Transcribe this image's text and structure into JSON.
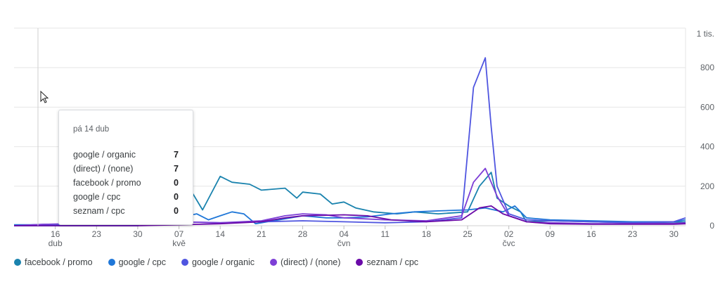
{
  "colors": {
    "facebook_promo": "#1a83ae",
    "google_cpc": "#1f77d8",
    "google_organic": "#4f55e0",
    "direct_none": "#7d3fd6",
    "seznam_cpc": "#6a0aa8",
    "grid": "#e6e6e6"
  },
  "tooltip": {
    "date": "pá 14 dub",
    "rows": [
      {
        "label": "google / organic",
        "value": "7"
      },
      {
        "label": "(direct) / (none)",
        "value": "7"
      },
      {
        "label": "facebook / promo",
        "value": "0"
      },
      {
        "label": "google / cpc",
        "value": "0"
      },
      {
        "label": "seznam / cpc",
        "value": "0"
      }
    ]
  },
  "cursor_icon": "mouse-pointer-icon",
  "chart_data": {
    "type": "line",
    "title": "",
    "xlabel": "",
    "ylabel": "",
    "ylim": [
      0,
      1000
    ],
    "y_ticks": [
      {
        "value": 0,
        "label": "0"
      },
      {
        "value": 200,
        "label": "200"
      },
      {
        "value": 400,
        "label": "400"
      },
      {
        "value": 600,
        "label": "600"
      },
      {
        "value": 800,
        "label": "800"
      },
      {
        "value": 1000,
        "label": "1 tis."
      }
    ],
    "x_start": "2023-04-09",
    "x_ticks": [
      {
        "date": "2023-04-16",
        "label": "16",
        "sub": "dub"
      },
      {
        "date": "2023-04-23",
        "label": "23",
        "sub": ""
      },
      {
        "date": "2023-04-30",
        "label": "30",
        "sub": ""
      },
      {
        "date": "2023-05-07",
        "label": "07",
        "sub": "kvě"
      },
      {
        "date": "2023-05-14",
        "label": "14",
        "sub": ""
      },
      {
        "date": "2023-05-21",
        "label": "21",
        "sub": ""
      },
      {
        "date": "2023-05-28",
        "label": "28",
        "sub": ""
      },
      {
        "date": "2023-06-04",
        "label": "04",
        "sub": "čvn"
      },
      {
        "date": "2023-06-11",
        "label": "11",
        "sub": ""
      },
      {
        "date": "2023-06-18",
        "label": "18",
        "sub": ""
      },
      {
        "date": "2023-06-25",
        "label": "25",
        "sub": ""
      },
      {
        "date": "2023-07-02",
        "label": "02",
        "sub": "čvc"
      },
      {
        "date": "2023-07-09",
        "label": "09",
        "sub": ""
      },
      {
        "date": "2023-07-16",
        "label": "16",
        "sub": ""
      },
      {
        "date": "2023-07-23",
        "label": "23",
        "sub": ""
      },
      {
        "date": "2023-07-30",
        "label": "30",
        "sub": ""
      }
    ],
    "series": [
      {
        "name": "facebook / promo",
        "color": "#1a83ae",
        "points": [
          [
            "2023-04-09",
            0
          ],
          [
            "2023-04-16",
            0
          ],
          [
            "2023-04-23",
            0
          ],
          [
            "2023-04-30",
            0
          ],
          [
            "2023-05-07",
            200
          ],
          [
            "2023-05-09",
            180
          ],
          [
            "2023-05-11",
            80
          ],
          [
            "2023-05-14",
            250
          ],
          [
            "2023-05-16",
            220
          ],
          [
            "2023-05-19",
            210
          ],
          [
            "2023-05-21",
            180
          ],
          [
            "2023-05-25",
            190
          ],
          [
            "2023-05-27",
            140
          ],
          [
            "2023-05-28",
            170
          ],
          [
            "2023-05-31",
            160
          ],
          [
            "2023-06-02",
            110
          ],
          [
            "2023-06-04",
            120
          ],
          [
            "2023-06-06",
            90
          ],
          [
            "2023-06-09",
            70
          ],
          [
            "2023-06-13",
            60
          ],
          [
            "2023-06-16",
            70
          ],
          [
            "2023-06-20",
            60
          ],
          [
            "2023-06-25",
            70
          ],
          [
            "2023-06-27",
            200
          ],
          [
            "2023-06-29",
            270
          ],
          [
            "2023-06-30",
            140
          ],
          [
            "2023-07-02",
            100
          ],
          [
            "2023-07-04",
            70
          ],
          [
            "2023-07-05",
            20
          ],
          [
            "2023-07-09",
            25
          ],
          [
            "2023-07-16",
            20
          ],
          [
            "2023-07-23",
            15
          ],
          [
            "2023-07-30",
            18
          ],
          [
            "2023-08-01",
            20
          ]
        ]
      },
      {
        "name": "google / cpc",
        "color": "#1f77d8",
        "points": [
          [
            "2023-04-09",
            5
          ],
          [
            "2023-04-16",
            5
          ],
          [
            "2023-04-23",
            5
          ],
          [
            "2023-04-30",
            5
          ],
          [
            "2023-05-07",
            40
          ],
          [
            "2023-05-10",
            60
          ],
          [
            "2023-05-12",
            30
          ],
          [
            "2023-05-14",
            50
          ],
          [
            "2023-05-16",
            70
          ],
          [
            "2023-05-18",
            60
          ],
          [
            "2023-05-20",
            10
          ],
          [
            "2023-05-24",
            30
          ],
          [
            "2023-05-28",
            50
          ],
          [
            "2023-06-01",
            40
          ],
          [
            "2023-06-04",
            40
          ],
          [
            "2023-06-08",
            45
          ],
          [
            "2023-06-12",
            60
          ],
          [
            "2023-06-16",
            70
          ],
          [
            "2023-06-20",
            75
          ],
          [
            "2023-06-25",
            80
          ],
          [
            "2023-06-28",
            90
          ],
          [
            "2023-07-01",
            70
          ],
          [
            "2023-07-03",
            100
          ],
          [
            "2023-07-05",
            40
          ],
          [
            "2023-07-09",
            30
          ],
          [
            "2023-07-16",
            25
          ],
          [
            "2023-07-23",
            20
          ],
          [
            "2023-07-30",
            20
          ],
          [
            "2023-08-01",
            30
          ]
        ]
      },
      {
        "name": "google / organic",
        "color": "#4f55e0",
        "points": [
          [
            "2023-04-09",
            0
          ],
          [
            "2023-04-14",
            7
          ],
          [
            "2023-04-20",
            10
          ],
          [
            "2023-04-30",
            15
          ],
          [
            "2023-05-07",
            20
          ],
          [
            "2023-05-14",
            15
          ],
          [
            "2023-05-21",
            20
          ],
          [
            "2023-05-28",
            25
          ],
          [
            "2023-06-04",
            20
          ],
          [
            "2023-06-11",
            15
          ],
          [
            "2023-06-18",
            20
          ],
          [
            "2023-06-24",
            40
          ],
          [
            "2023-06-26",
            700
          ],
          [
            "2023-06-28",
            850
          ],
          [
            "2023-06-29",
            500
          ],
          [
            "2023-06-30",
            200
          ],
          [
            "2023-07-02",
            60
          ],
          [
            "2023-07-05",
            30
          ],
          [
            "2023-07-09",
            25
          ],
          [
            "2023-07-16",
            20
          ],
          [
            "2023-07-23",
            15
          ],
          [
            "2023-07-30",
            20
          ],
          [
            "2023-08-01",
            40
          ]
        ]
      },
      {
        "name": "(direct) / (none)",
        "color": "#7d3fd6",
        "points": [
          [
            "2023-04-09",
            0
          ],
          [
            "2023-04-14",
            7
          ],
          [
            "2023-04-20",
            10
          ],
          [
            "2023-04-30",
            20
          ],
          [
            "2023-05-07",
            20
          ],
          [
            "2023-05-14",
            15
          ],
          [
            "2023-05-21",
            25
          ],
          [
            "2023-05-25",
            50
          ],
          [
            "2023-05-28",
            60
          ],
          [
            "2023-06-01",
            55
          ],
          [
            "2023-06-04",
            40
          ],
          [
            "2023-06-11",
            30
          ],
          [
            "2023-06-18",
            25
          ],
          [
            "2023-06-24",
            50
          ],
          [
            "2023-06-26",
            220
          ],
          [
            "2023-06-28",
            290
          ],
          [
            "2023-06-30",
            150
          ],
          [
            "2023-07-02",
            50
          ],
          [
            "2023-07-05",
            20
          ],
          [
            "2023-07-09",
            15
          ],
          [
            "2023-07-16",
            10
          ],
          [
            "2023-07-23",
            10
          ],
          [
            "2023-07-30",
            12
          ],
          [
            "2023-08-01",
            15
          ]
        ]
      },
      {
        "name": "seznam / cpc",
        "color": "#6a0aa8",
        "points": [
          [
            "2023-04-09",
            0
          ],
          [
            "2023-04-16",
            0
          ],
          [
            "2023-04-30",
            0
          ],
          [
            "2023-05-07",
            5
          ],
          [
            "2023-05-14",
            10
          ],
          [
            "2023-05-21",
            20
          ],
          [
            "2023-05-25",
            40
          ],
          [
            "2023-05-28",
            50
          ],
          [
            "2023-06-04",
            55
          ],
          [
            "2023-06-08",
            50
          ],
          [
            "2023-06-12",
            30
          ],
          [
            "2023-06-18",
            20
          ],
          [
            "2023-06-24",
            30
          ],
          [
            "2023-06-27",
            90
          ],
          [
            "2023-06-29",
            100
          ],
          [
            "2023-07-01",
            60
          ],
          [
            "2023-07-05",
            20
          ],
          [
            "2023-07-09",
            10
          ],
          [
            "2023-07-16",
            8
          ],
          [
            "2023-07-23",
            8
          ],
          [
            "2023-07-30",
            8
          ],
          [
            "2023-08-01",
            10
          ]
        ]
      }
    ],
    "legend_placement": "bottom-left",
    "grid": true
  }
}
